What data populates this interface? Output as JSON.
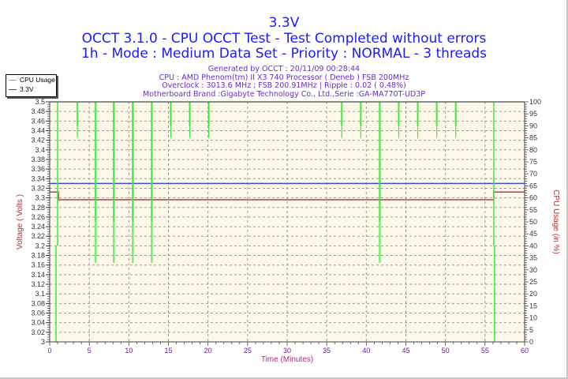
{
  "title": "3.3V",
  "subtitle_1": "OCCT 3.1.0 - CPU OCCT Test - Test Completed without errors",
  "subtitle_2": "1h - Mode : Medium Data Set - Priority : NORMAL - 3 threads",
  "info": {
    "generated": "Generated by OCCT : 20/11/09 00:28:44",
    "cpu": "CPU : AMD Phenom(tm) II X3 740 Processor ( Deneb ) FSB 200MHz",
    "overclock": "Overclock : 3013.6 MHz ; FSB 200.91MHz | Ripple : 0.02 ( 0.48%)",
    "motherboard": "Motherboard Brand :Gigabyte Technology Co., Ltd.,Serie :GA-MA770T-UD3P"
  },
  "legend": {
    "items": [
      {
        "label": "CPU Usage",
        "color": "#33dd33"
      },
      {
        "label": "3.3V",
        "color": "#b03030"
      }
    ]
  },
  "colors": {
    "plot_bg": "#fdf8ea",
    "grid": "#9a9a9a",
    "cpu_usage": "#33ee33",
    "voltage": "#b84040",
    "reference_line": "#3a50e0",
    "axis_label": "#b03030",
    "tick_label_left": "#333333",
    "tick_label_bottom": "#6a1a9a"
  },
  "chart_data": {
    "type": "line",
    "title": "3.3V",
    "xlabel": "Time (Minutes)",
    "ylabel": "Voltage ( Volts )",
    "y2label": "CPU Usage (in %)",
    "xlim": [
      0,
      60
    ],
    "ylim": [
      3.0,
      3.5
    ],
    "y2lim": [
      0,
      100
    ],
    "x_ticks": [
      0,
      5,
      10,
      15,
      20,
      25,
      30,
      35,
      40,
      45,
      50,
      55,
      60
    ],
    "y_ticks": [
      "3.5",
      "3.48",
      "3.46",
      "3.44",
      "3.42",
      "3.4",
      "3.38",
      "3.36",
      "3.34",
      "3.32",
      "3.3",
      "3.28",
      "3.26",
      "3.24",
      "3.22",
      "3.2",
      "3.18",
      "3.16",
      "3.14",
      "3.12",
      "3.1",
      "3.08",
      "3.06",
      "3.04",
      "3.02",
      "3"
    ],
    "y2_ticks": [
      100,
      95,
      90,
      85,
      80,
      75,
      70,
      65,
      60,
      55,
      50,
      45,
      40,
      35,
      30,
      25,
      20,
      15,
      10,
      5,
      0
    ],
    "grid": true,
    "legend_position": "top-left",
    "series": [
      {
        "name": "3.3V",
        "axis": "left",
        "points": [
          [
            0,
            3.312
          ],
          [
            1.1,
            3.312
          ],
          [
            1.1,
            3.296
          ],
          [
            56.1,
            3.296
          ],
          [
            56.1,
            3.312
          ],
          [
            60,
            3.312
          ]
        ]
      },
      {
        "name": "CPU Usage",
        "axis": "right",
        "baseline": 100,
        "startup": [
          [
            0.8,
            0
          ],
          [
            0.9,
            100
          ]
        ],
        "end": [
          [
            56.1,
            100
          ],
          [
            56.1,
            0
          ]
        ],
        "dips": [
          {
            "t": 3.5,
            "min": 85
          },
          {
            "t": 5.8,
            "min": 33
          },
          {
            "t": 8.1,
            "min": 33
          },
          {
            "t": 10.5,
            "min": 33
          },
          {
            "t": 12.9,
            "min": 33
          },
          {
            "t": 15.3,
            "min": 85
          },
          {
            "t": 17.7,
            "min": 85
          },
          {
            "t": 20.1,
            "min": 85
          },
          {
            "t": 36.9,
            "min": 85
          },
          {
            "t": 39.3,
            "min": 85
          },
          {
            "t": 41.7,
            "min": 33
          },
          {
            "t": 44.1,
            "min": 85
          },
          {
            "t": 46.5,
            "min": 85
          },
          {
            "t": 48.9,
            "min": 85
          },
          {
            "t": 51.3,
            "min": 85
          }
        ]
      },
      {
        "name": "Reference",
        "axis": "left",
        "points": [
          [
            0,
            3.33
          ],
          [
            60,
            3.33
          ]
        ]
      }
    ]
  }
}
